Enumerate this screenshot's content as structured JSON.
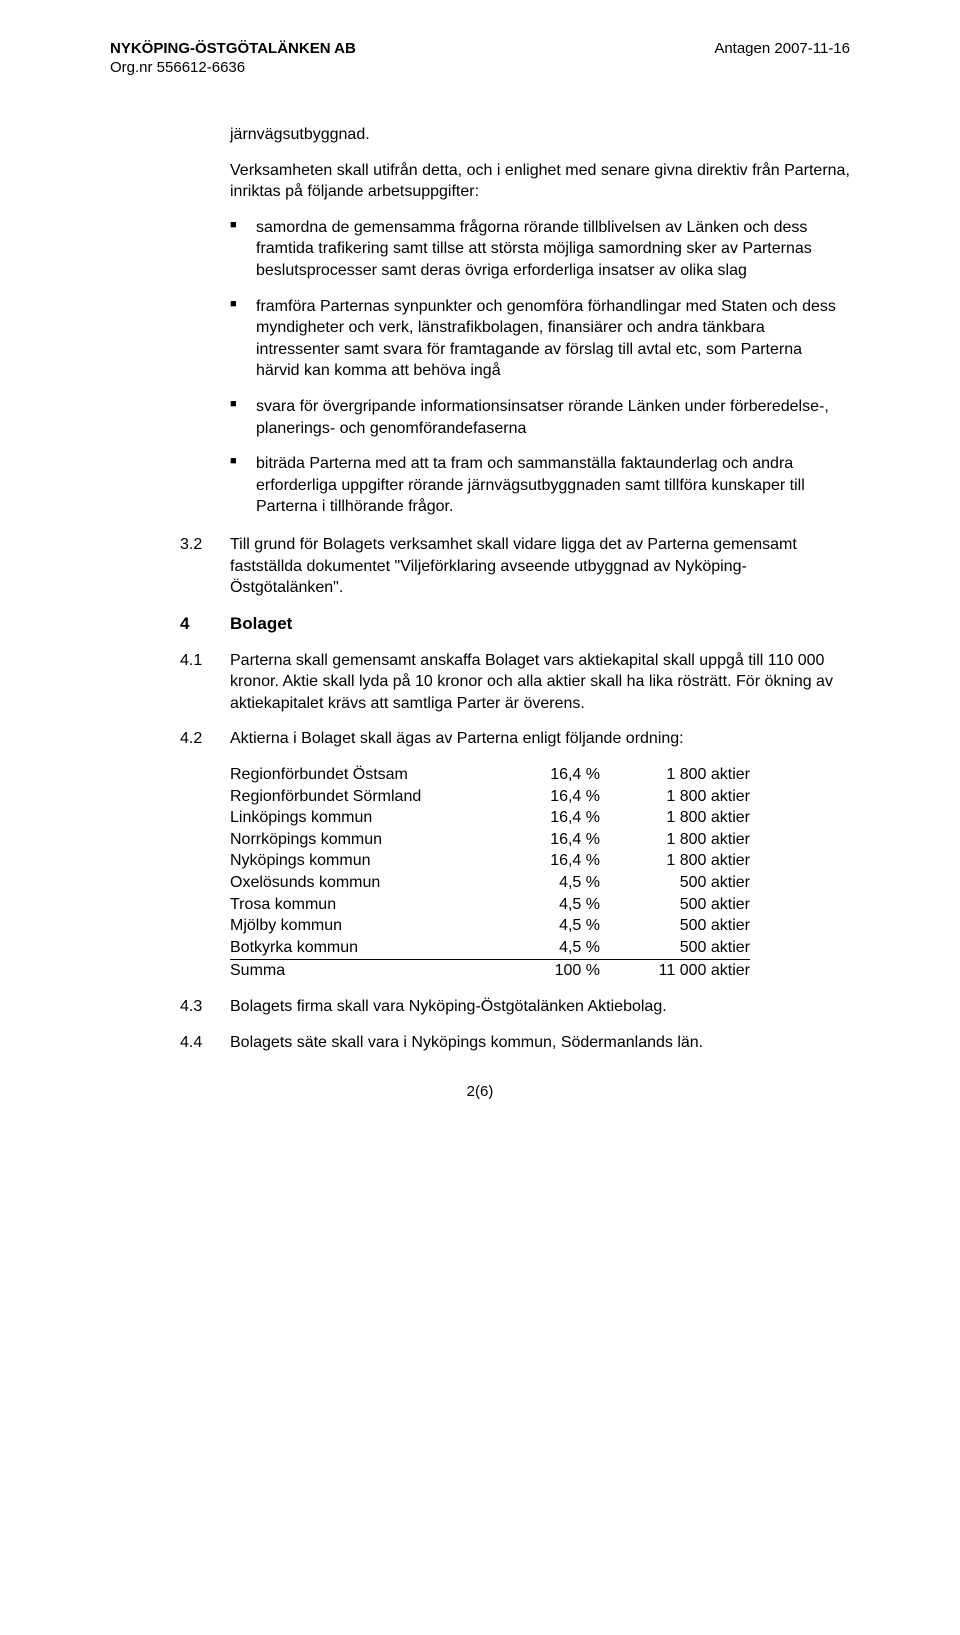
{
  "header": {
    "company": "NYKÖPING-ÖSTGÖTALÄNKEN AB",
    "orgnr": "Org.nr 556612-6636",
    "adopted": "Antagen 2007-11-16"
  },
  "intro": {
    "p1": "järnvägsutbyggnad.",
    "p2": "Verksamheten skall utifrån detta, och i enlighet med senare givna direktiv från Parterna, inriktas på följande arbetsuppgifter:"
  },
  "bullets": [
    "samordna de gemensamma frågorna rörande tillblivelsen av Länken och dess framtida trafikering samt tillse att största möjliga samordning sker av Parternas beslutsprocesser samt deras övriga erforderliga insatser av olika slag",
    "framföra Parternas synpunkter och genomföra förhandlingar med Staten och dess myndigheter och verk, länstrafikbolagen, finansiärer och andra tänkbara intressenter samt svara för framtagande av förslag till avtal etc, som Parterna härvid kan komma att behöva ingå",
    "svara för övergripande informationsinsatser rörande Länken under förberedelse-, planerings- och genomförandefaserna",
    "biträda Parterna med att ta fram och sammanställa faktaunderlag och andra erforderliga uppgifter rörande järnvägsutbyggnaden samt tillföra kunskaper till Parterna i tillhörande frågor."
  ],
  "s3_2": {
    "num": "3.2",
    "text": "Till grund för Bolagets verksamhet skall vidare ligga det av Parterna gemensamt fastställda dokumentet \"Viljeförklaring avseende utbyggnad av Nyköping-Östgötalänken\"."
  },
  "s4": {
    "num": "4",
    "title": "Bolaget"
  },
  "s4_1": {
    "num": "4.1",
    "text": "Parterna skall gemensamt anskaffa Bolaget vars aktiekapital skall uppgå till 110 000 kronor. Aktie skall lyda på 10 kronor och alla aktier skall ha lika rösträtt. För ökning av aktiekapitalet krävs att samtliga Parter är överens."
  },
  "s4_2": {
    "num": "4.2",
    "text": "Aktierna i Bolaget skall ägas av Parterna enligt följande ordning:"
  },
  "shares": {
    "rows": [
      {
        "name": "Regionförbundet Östsam",
        "pct": "16,4 %",
        "shares": "1 800 aktier"
      },
      {
        "name": "Regionförbundet Sörmland",
        "pct": "16,4 %",
        "shares": "1 800 aktier"
      },
      {
        "name": "Linköpings kommun",
        "pct": "16,4 %",
        "shares": "1 800 aktier"
      },
      {
        "name": "Norrköpings kommun",
        "pct": "16,4 %",
        "shares": "1 800 aktier"
      },
      {
        "name": "Nyköpings kommun",
        "pct": "16,4 %",
        "shares": "1 800 aktier"
      },
      {
        "name": "Oxelösunds kommun",
        "pct": "4,5 %",
        "shares": "500 aktier"
      },
      {
        "name": "Trosa kommun",
        "pct": "4,5 %",
        "shares": "500 aktier"
      },
      {
        "name": "Mjölby kommun",
        "pct": "4,5 %",
        "shares": "500 aktier"
      },
      {
        "name": "Botkyrka kommun",
        "pct": "4,5 %",
        "shares": "500 aktier"
      }
    ],
    "total": {
      "name": "Summa",
      "pct": "100 %",
      "shares": "11 000 aktier"
    }
  },
  "s4_3": {
    "num": "4.3",
    "text": "Bolagets firma skall vara Nyköping-Östgötalänken Aktiebolag."
  },
  "s4_4": {
    "num": "4.4",
    "text": "Bolagets säte skall vara i Nyköpings kommun, Södermanlands län."
  },
  "footer": {
    "page": "2(6)"
  }
}
